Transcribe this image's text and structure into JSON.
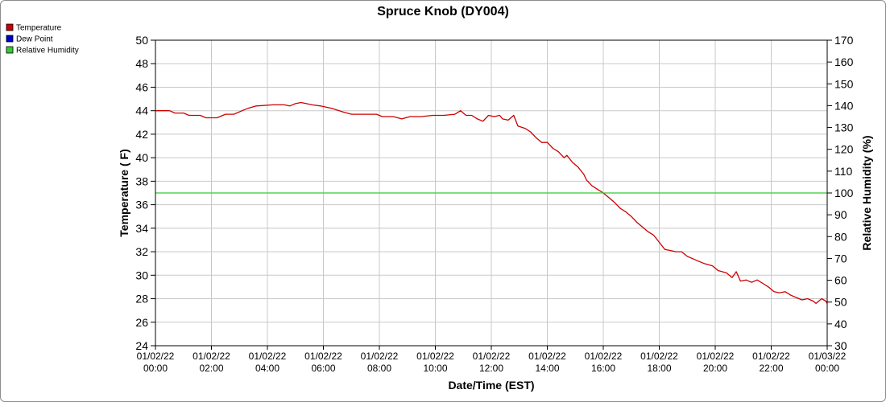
{
  "chart_data": {
    "type": "line",
    "title": "Spruce Knob (DY004)",
    "xlabel": "Date/Time (EST)",
    "ylabel": "Temperature ( F)",
    "y2label": "Relative Humidity (%)",
    "ylim": [
      24,
      50
    ],
    "yticks": [
      24,
      26,
      28,
      30,
      32,
      34,
      36,
      38,
      40,
      42,
      44,
      46,
      48,
      50
    ],
    "y2lim": [
      30,
      170
    ],
    "y2ticks": [
      30,
      40,
      50,
      60,
      70,
      80,
      90,
      100,
      110,
      120,
      130,
      140,
      150,
      160,
      170
    ],
    "xlim": [
      0,
      24
    ],
    "xticks": [
      {
        "hour": 0,
        "date": "01/02/22",
        "time": "00:00"
      },
      {
        "hour": 2,
        "date": "01/02/22",
        "time": "02:00"
      },
      {
        "hour": 4,
        "date": "01/02/22",
        "time": "04:00"
      },
      {
        "hour": 6,
        "date": "01/02/22",
        "time": "06:00"
      },
      {
        "hour": 8,
        "date": "01/02/22",
        "time": "08:00"
      },
      {
        "hour": 10,
        "date": "01/02/22",
        "time": "10:00"
      },
      {
        "hour": 12,
        "date": "01/02/22",
        "time": "12:00"
      },
      {
        "hour": 14,
        "date": "01/02/22",
        "time": "14:00"
      },
      {
        "hour": 16,
        "date": "01/02/22",
        "time": "16:00"
      },
      {
        "hour": 18,
        "date": "01/02/22",
        "time": "18:00"
      },
      {
        "hour": 20,
        "date": "01/02/22",
        "time": "20:00"
      },
      {
        "hour": 22,
        "date": "01/02/22",
        "time": "22:00"
      },
      {
        "hour": 24,
        "date": "01/03/22",
        "time": "00:00"
      }
    ],
    "grid": true,
    "legend_position": "top-left",
    "legend": [
      {
        "name": "Temperature",
        "color": "#cc0000"
      },
      {
        "name": "Dew Point",
        "color": "#0000cc"
      },
      {
        "name": "Relative Humidity",
        "color": "#33cc33"
      }
    ],
    "series": [
      {
        "name": "Temperature",
        "color": "#cc0000",
        "axis": "left",
        "points": [
          [
            0.0,
            44.0
          ],
          [
            0.5,
            44.0
          ],
          [
            0.7,
            43.8
          ],
          [
            1.0,
            43.8
          ],
          [
            1.2,
            43.6
          ],
          [
            1.6,
            43.6
          ],
          [
            1.8,
            43.4
          ],
          [
            2.0,
            43.4
          ],
          [
            2.2,
            43.4
          ],
          [
            2.5,
            43.7
          ],
          [
            2.8,
            43.7
          ],
          [
            3.1,
            44.0
          ],
          [
            3.3,
            44.2
          ],
          [
            3.6,
            44.4
          ],
          [
            4.2,
            44.5
          ],
          [
            4.6,
            44.5
          ],
          [
            4.8,
            44.4
          ],
          [
            5.0,
            44.6
          ],
          [
            5.2,
            44.7
          ],
          [
            5.4,
            44.6
          ],
          [
            5.6,
            44.5
          ],
          [
            5.9,
            44.4
          ],
          [
            6.3,
            44.2
          ],
          [
            6.7,
            43.9
          ],
          [
            7.0,
            43.7
          ],
          [
            7.5,
            43.7
          ],
          [
            7.9,
            43.7
          ],
          [
            8.1,
            43.5
          ],
          [
            8.5,
            43.5
          ],
          [
            8.8,
            43.3
          ],
          [
            9.1,
            43.5
          ],
          [
            9.5,
            43.5
          ],
          [
            9.9,
            43.6
          ],
          [
            10.3,
            43.6
          ],
          [
            10.7,
            43.7
          ],
          [
            10.9,
            44.0
          ],
          [
            11.1,
            43.6
          ],
          [
            11.3,
            43.6
          ],
          [
            11.5,
            43.3
          ],
          [
            11.7,
            43.1
          ],
          [
            11.9,
            43.6
          ],
          [
            12.1,
            43.5
          ],
          [
            12.3,
            43.6
          ],
          [
            12.4,
            43.3
          ],
          [
            12.6,
            43.2
          ],
          [
            12.8,
            43.6
          ],
          [
            12.95,
            42.7
          ],
          [
            13.2,
            42.5
          ],
          [
            13.4,
            42.2
          ],
          [
            13.6,
            41.7
          ],
          [
            13.8,
            41.3
          ],
          [
            14.0,
            41.3
          ],
          [
            14.2,
            40.8
          ],
          [
            14.4,
            40.5
          ],
          [
            14.6,
            40.0
          ],
          [
            14.7,
            40.2
          ],
          [
            14.9,
            39.6
          ],
          [
            15.1,
            39.2
          ],
          [
            15.3,
            38.6
          ],
          [
            15.4,
            38.1
          ],
          [
            15.6,
            37.6
          ],
          [
            15.8,
            37.3
          ],
          [
            16.0,
            37.0
          ],
          [
            16.2,
            36.6
          ],
          [
            16.4,
            36.2
          ],
          [
            16.6,
            35.7
          ],
          [
            16.8,
            35.4
          ],
          [
            17.0,
            35.0
          ],
          [
            17.2,
            34.5
          ],
          [
            17.4,
            34.1
          ],
          [
            17.6,
            33.7
          ],
          [
            17.8,
            33.4
          ],
          [
            18.0,
            32.8
          ],
          [
            18.2,
            32.2
          ],
          [
            18.4,
            32.1
          ],
          [
            18.6,
            32.0
          ],
          [
            18.8,
            32.0
          ],
          [
            19.0,
            31.6
          ],
          [
            19.2,
            31.4
          ],
          [
            19.4,
            31.2
          ],
          [
            19.6,
            31.0
          ],
          [
            19.9,
            30.8
          ],
          [
            20.1,
            30.4
          ],
          [
            20.4,
            30.2
          ],
          [
            20.6,
            29.8
          ],
          [
            20.75,
            30.3
          ],
          [
            20.9,
            29.5
          ],
          [
            21.1,
            29.6
          ],
          [
            21.3,
            29.4
          ],
          [
            21.5,
            29.6
          ],
          [
            21.7,
            29.3
          ],
          [
            21.9,
            29.0
          ],
          [
            22.1,
            28.6
          ],
          [
            22.3,
            28.5
          ],
          [
            22.5,
            28.6
          ],
          [
            22.7,
            28.3
          ],
          [
            22.9,
            28.1
          ],
          [
            23.1,
            27.9
          ],
          [
            23.3,
            28.0
          ],
          [
            23.5,
            27.8
          ],
          [
            23.6,
            27.6
          ],
          [
            23.8,
            28.0
          ],
          [
            23.95,
            27.8
          ],
          [
            24.0,
            27.6
          ]
        ]
      },
      {
        "name": "Relative Humidity",
        "color": "#33cc33",
        "axis": "right",
        "points": [
          [
            0,
            100
          ],
          [
            24,
            100
          ]
        ]
      }
    ]
  }
}
